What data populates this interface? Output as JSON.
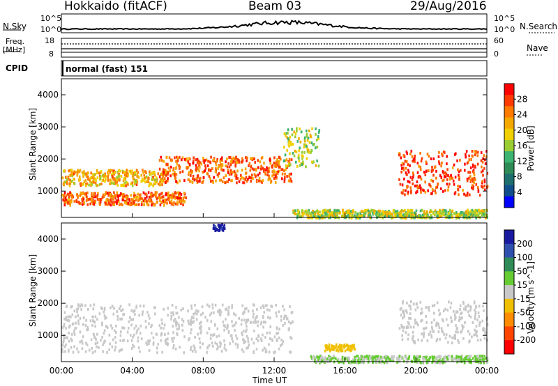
{
  "header": {
    "station": "Hokkaido (fitACF)",
    "beam": "Beam 03",
    "date": "29/Aug/2016"
  },
  "noise_panel": {
    "left_label": "N.Sky",
    "right_label": "N.Search",
    "top_tick": "10^5",
    "bottom_tick": "10^0"
  },
  "freq_panel": {
    "left_label_line1": "Freq.",
    "left_label_line2": "[MHz]",
    "left_ticks": [
      "18",
      "8"
    ],
    "right_label": "Nave",
    "right_ticks": [
      "60",
      "0"
    ]
  },
  "cpid_panel": {
    "label": "CPID",
    "program": "normal (fast) 151"
  },
  "power_panel": {
    "ylabel": "Slant Range [km]",
    "colorbar_label": "Power [dB]",
    "colorbar_ticks": [
      "28",
      "24",
      "20",
      "16",
      "12",
      "8",
      "4"
    ],
    "colorbar_colors": [
      "#ff0000",
      "#ff3a00",
      "#ff7a00",
      "#f5a800",
      "#f0d000",
      "#9acd32",
      "#3cb371",
      "#2e8b57",
      "#1e6e6e",
      "#104e8b",
      "#0000ff"
    ]
  },
  "velocity_panel": {
    "ylabel": "Slant Range [km]",
    "colorbar_label": "Velocity [m s^-1]",
    "colorbar_ticks": [
      "200",
      "100",
      "50",
      "15",
      "-15",
      "-50",
      "-100",
      "-200"
    ],
    "colorbar_colors": [
      "#1a1aa0",
      "#3050b0",
      "#2e8b57",
      "#66cc33",
      "#c8c8c8",
      "#f0c000",
      "#ff8c00",
      "#ff4500",
      "#ff0000"
    ]
  },
  "xaxis": {
    "label": "Time UT",
    "ticks": [
      "00:00",
      "04:00",
      "08:00",
      "12:00",
      "16:00",
      "20:00",
      "00:00"
    ]
  },
  "chart_data": {
    "type": "heatmap",
    "title": "Hokkaido (fitACF) Beam 03 29/Aug/2016",
    "xlabel": "Time UT",
    "ylabel": "Slant Range [km]",
    "x_range_hours": [
      0,
      24
    ],
    "y_range_km": [
      180,
      4500
    ],
    "y_ticks": [
      1000,
      2000,
      3000,
      4000
    ],
    "power_range_db": [
      0,
      30
    ],
    "velocity_range": [
      -250,
      250
    ],
    "power_echo_bands": [
      {
        "t0": 0.0,
        "t1": 7.0,
        "r0": 600,
        "r1": 1000,
        "level_db": 24
      },
      {
        "t0": 0.0,
        "t1": 6.0,
        "r0": 1200,
        "r1": 1700,
        "level_db": 20
      },
      {
        "t0": 5.5,
        "t1": 13.0,
        "r0": 1300,
        "r1": 2100,
        "level_db": 24
      },
      {
        "t0": 12.5,
        "t1": 14.5,
        "r0": 1800,
        "r1": 3000,
        "level_db": 16
      },
      {
        "t0": 19.0,
        "t1": 24.0,
        "r0": 900,
        "r1": 2300,
        "level_db": 26
      },
      {
        "t0": 13.0,
        "t1": 24.0,
        "r0": 200,
        "r1": 450,
        "level_db": 16
      }
    ],
    "velocity_regions": [
      {
        "t0": 0.0,
        "t1": 13.0,
        "r0": 500,
        "r1": 2000,
        "velocity": 0
      },
      {
        "t0": 19.0,
        "t1": 24.0,
        "r0": 800,
        "r1": 2100,
        "velocity": 0
      },
      {
        "t0": 14.8,
        "t1": 16.5,
        "r0": 550,
        "r1": 750,
        "velocity": -60
      },
      {
        "t0": 14.0,
        "t1": 24.0,
        "r0": 180,
        "r1": 400,
        "velocity": 30
      },
      {
        "t0": 8.5,
        "t1": 9.2,
        "r0": 4300,
        "r1": 4500,
        "velocity": 200
      }
    ]
  }
}
